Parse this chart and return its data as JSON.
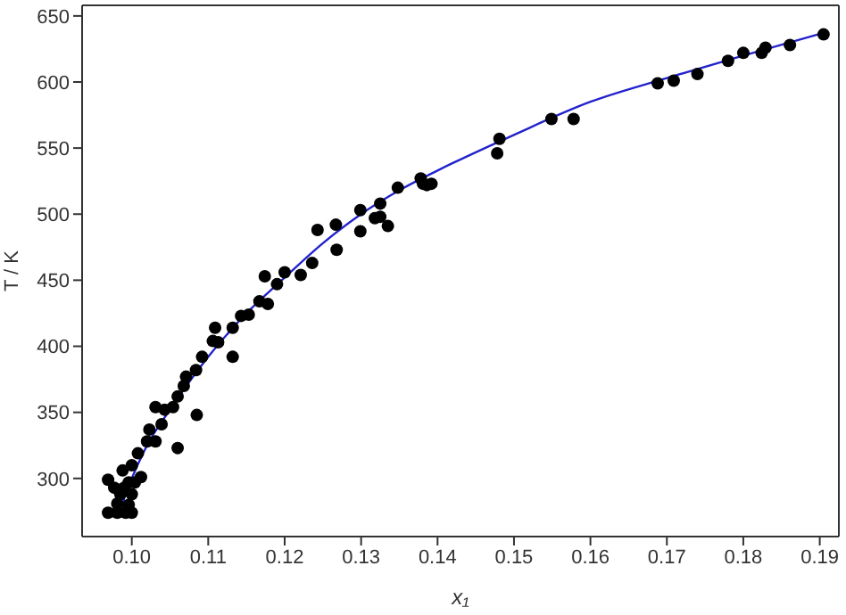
{
  "chart_data": {
    "type": "scatter",
    "xlabel": "x₁",
    "ylabel": "T / K",
    "xlim": [
      0.0935,
      0.1925
    ],
    "ylim": [
      256,
      658
    ],
    "xticks": [
      {
        "value": 0.1,
        "label": "0.10"
      },
      0.11,
      0.12,
      0.13,
      0.14,
      0.15,
      0.16,
      0.17,
      0.18,
      0.19
    ],
    "yticks": [
      300,
      350,
      400,
      450,
      500,
      550,
      600,
      650
    ],
    "marker": "circle",
    "series": [
      {
        "color": "#000000",
        "x": [
          0.1905,
          0.1861,
          0.1829,
          0.1824,
          0.18,
          0.178,
          0.174,
          0.1709,
          0.1688,
          0.1578,
          0.1549,
          0.1481,
          0.1478,
          0.1392,
          0.1378,
          0.1381,
          0.1348,
          0.1386,
          0.1335,
          0.1325,
          0.1325,
          0.1318,
          0.1299,
          0.1299,
          0.1267,
          0.1268,
          0.1243,
          0.1236,
          0.1221,
          0.12,
          0.119,
          0.1174,
          0.1178,
          0.1167,
          0.1153,
          0.1143,
          0.1132,
          0.1109,
          0.1132,
          0.1113,
          0.1106,
          0.1092,
          0.1084,
          0.1071,
          0.1068,
          0.1085,
          0.106,
          0.1054,
          0.1043,
          0.1031,
          0.1039,
          0.106,
          0.1023,
          0.102,
          0.1031,
          0.1008,
          0.1,
          0.1012,
          0.0988,
          0.0969,
          0.0996,
          0.0977,
          0.0985,
          0.1,
          0.0981,
          0.0996,
          0.0969,
          0.0981,
          0.0992,
          0.1,
          0.099,
          0.1004
        ],
        "values": [
          636,
          628,
          626,
          622,
          622,
          616,
          606,
          601,
          599,
          572,
          572,
          557,
          546,
          523,
          527,
          523,
          520,
          522,
          491,
          508,
          498,
          497,
          503,
          487,
          492,
          473,
          488,
          463,
          454,
          456,
          447,
          453,
          432,
          434,
          424,
          423,
          414,
          414,
          392,
          403,
          404,
          392,
          382,
          377,
          370,
          348,
          362,
          354,
          352,
          354,
          341,
          323,
          337,
          328,
          328,
          319,
          310,
          301,
          306,
          299,
          297,
          293,
          288,
          288,
          281,
          280,
          274,
          274,
          274,
          274,
          293,
          297
        ]
      },
      {
        "type": "line",
        "color": "#2222cc",
        "marker": "none",
        "x": [
          0.0985,
          0.099,
          0.1,
          0.102,
          0.105,
          0.11,
          0.115,
          0.12,
          0.125,
          0.13,
          0.135,
          0.14,
          0.15,
          0.16,
          0.17,
          0.18,
          0.191
        ],
        "values": [
          272,
          285,
          300,
          325,
          352,
          392,
          425,
          452,
          478,
          500,
          518,
          533,
          560,
          585,
          603,
          620,
          638
        ]
      }
    ]
  }
}
